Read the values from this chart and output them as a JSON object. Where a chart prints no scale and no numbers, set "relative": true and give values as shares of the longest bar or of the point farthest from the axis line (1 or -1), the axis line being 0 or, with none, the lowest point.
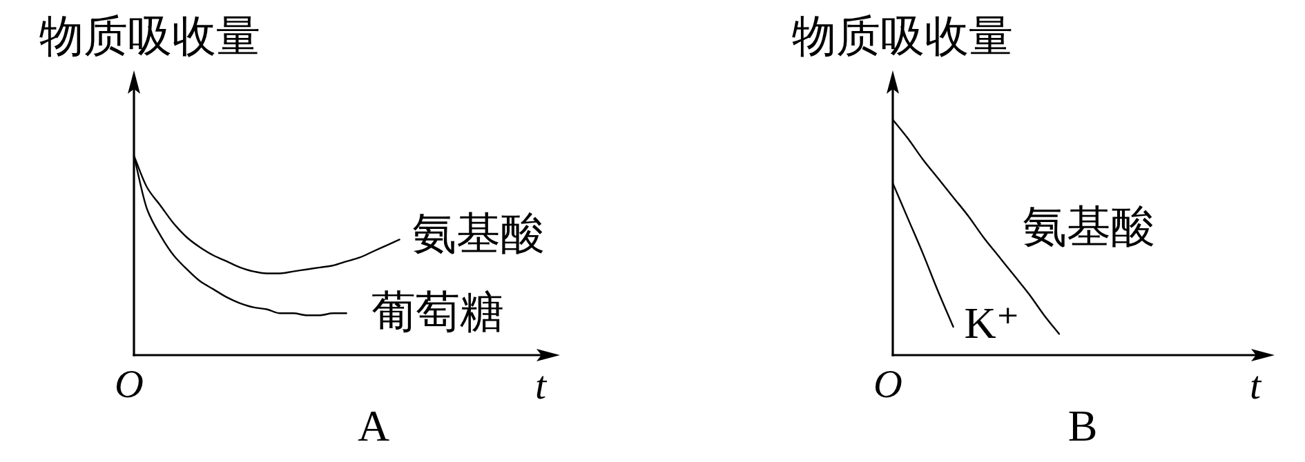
{
  "chart_data": [
    {
      "type": "line",
      "relative": true,
      "title": "A",
      "xlabel": "t",
      "ylabel": "物质吸收量",
      "annotations": [
        "O"
      ],
      "categories": [
        null,
        null,
        null,
        null,
        null,
        null,
        null,
        null,
        null,
        null,
        null,
        null,
        null,
        null,
        null,
        null,
        null,
        null,
        null,
        null,
        null
      ],
      "series": [
        {
          "name": "氨基酸",
          "color": "#000000",
          "values": [
            1.0,
            0.84,
            0.75,
            0.66,
            0.59,
            0.54,
            0.5,
            0.47,
            0.44,
            0.42,
            0.41,
            0.41,
            0.42,
            0.43,
            0.44,
            0.45,
            0.47,
            0.49,
            0.52,
            0.55,
            0.58
          ]
        },
        {
          "name": "葡萄糖",
          "color": "#000000",
          "values": [
            1.0,
            0.73,
            0.6,
            0.5,
            0.43,
            0.37,
            0.33,
            0.29,
            0.26,
            0.24,
            0.23,
            0.21,
            0.21,
            0.2,
            0.2,
            0.21,
            0.21,
            null,
            null,
            null,
            null
          ]
        }
      ]
    },
    {
      "type": "line",
      "relative": true,
      "title": "B",
      "xlabel": "t",
      "ylabel": "物质吸收量",
      "annotations": [
        "O"
      ],
      "categories": [
        null,
        null,
        null,
        null,
        null,
        null,
        null,
        null,
        null,
        null,
        null,
        null
      ],
      "series": [
        {
          "name": "氨基酸",
          "color": "#000000",
          "values": [
            1.0,
            0.92,
            0.83,
            0.75,
            0.67,
            0.59,
            0.5,
            0.42,
            0.34,
            0.26,
            0.17,
            0.09
          ]
        },
        {
          "name": "K⁺",
          "color": "#000000",
          "values": [
            0.73,
            0.58,
            0.43,
            0.27,
            0.12,
            null,
            null,
            null,
            null,
            null,
            null,
            null
          ]
        }
      ]
    }
  ]
}
